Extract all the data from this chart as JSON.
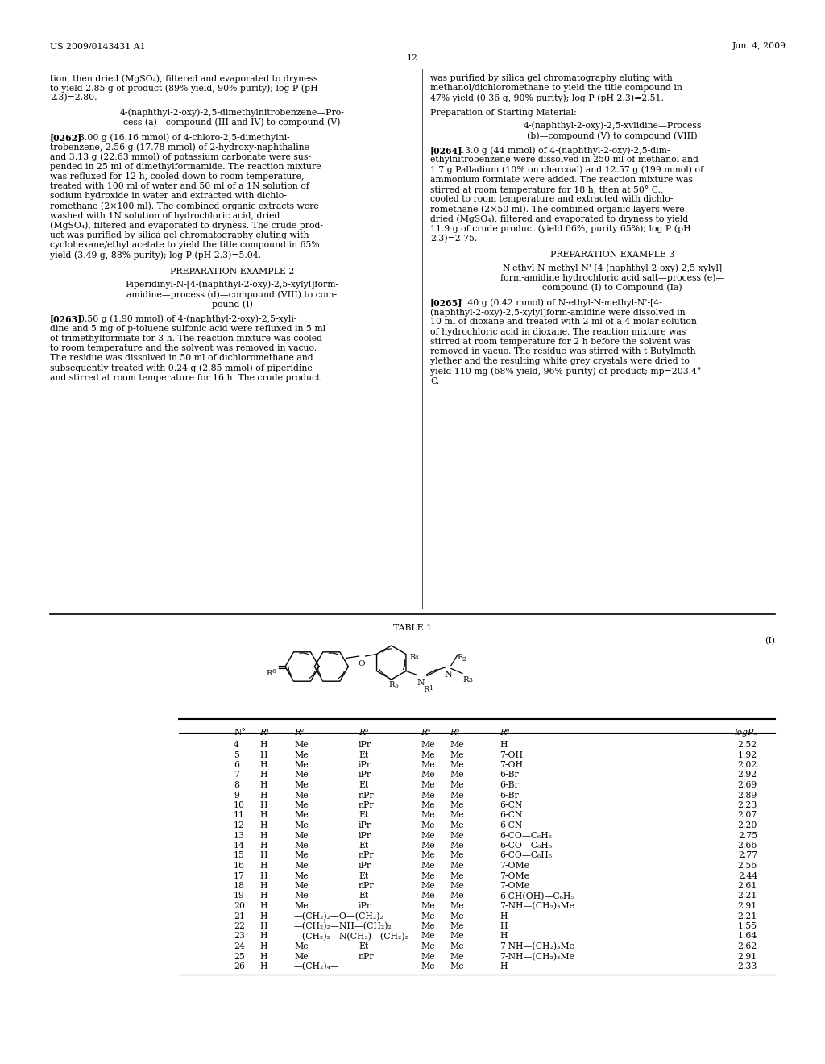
{
  "page_number": "12",
  "patent_number": "US 2009/0143431 A1",
  "patent_date": "Jun. 4, 2009",
  "background_color": "#ffffff",
  "left_column": {
    "intro_text": "tion, then dried (MgSO₄), filtered and evaporated to dryness\nto yield 2.85 g of product (89% yield, 90% purity); log P (pH\n2.3)=2.80.",
    "subtitle1_line1": "4-(naphthyl-2-oxy)-2,5-dimethylnitrobenzene—Pro-",
    "subtitle1_line2": "cess (a)—compound (III and IV) to compound (V)",
    "para1_label": "[0262]",
    "para1_text": "3.00 g (16.16 mmol) of 4-chloro-2,5-dimethylni-\ntrobenzene, 2.56 g (17.78 mmol) of 2-hydroxy-naphthaline\nand 3.13 g (22.63 mmol) of potassium carbonate were sus-\npended in 25 ml of dimethylformamide. The reaction mixture\nwas refluxed for 12 h, cooled down to room temperature,\ntreated with 100 ml of water and 50 ml of a 1N solution of\nsodium hydroxide in water and extracted with dichlo-\nromethane (2×100 ml). The combined organic extracts were\nwashed with 1N solution of hydrochloric acid, dried\n(MgSO₄), filtered and evaporated to dryness. The crude prod-\nuct was purified by silica gel chromatography eluting with\ncyclohexane/ethyl acetate to yield the title compound in 65%\nyield (3.49 g, 88% purity); log P (pH 2.3)=5.04.",
    "heading2": "PREPARATION EXAMPLE 2",
    "subtitle2_line1": "Piperidinyl-N-[4-(naphthyl-2-oxy)-2,5-xylyl]form-",
    "subtitle2_line2": "amidine—process (d)—compound (VIII) to com-",
    "subtitle2_line3": "pound (I)",
    "para2_label": "[0263]",
    "para2_text": "0.50 g (1.90 mmol) of 4-(naphthyl-2-oxy)-2,5-xyli-\ndine and 5 mg of p-toluene sulfonic acid were refluxed in 5 ml\nof trimethylformiate for 3 h. The reaction mixture was cooled\nto room temperature and the solvent was removed in vacuo.\nThe residue was dissolved in 50 ml of dichloromethane and\nsubsequently treated with 0.24 g (2.85 mmol) of piperidine\nand stirred at room temperature for 16 h. The crude product"
  },
  "right_column": {
    "intro_text": "was purified by silica gel chromatography eluting with\nmethanol/dichloromethane to yield the title compound in\n47% yield (0.36 g, 90% purity); log P (pH 2.3)=2.51.",
    "subtitle3": "Preparation of Starting Material:",
    "subtitle4_line1": "4-(naphthyl-2-oxy)-2,5-xvlidine—Process",
    "subtitle4_line2": "(b)—compound (V) to compound (VIII)",
    "para3_label": "[0264]",
    "para3_text": "13.0 g (44 mmol) of 4-(naphthyl-2-oxy)-2,5-dim-\nethylnitrobenzene were dissolved in 250 ml of methanol and\n1.7 g Palladium (10% on charcoal) and 12.57 g (199 mmol) of\nammonium formiate were added. The reaction mixture was\nstirred at room temperature for 18 h, then at 50° C.,\ncooled to room temperature and extracted with dichlo-\nromethane (2×50 ml). The combined organic layers were\ndried (MgSO₄), filtered and evaporated to dryness to yield\n11.9 g of crude product (yield 66%, purity 65%); log P (pH\n2.3)=2.75.",
    "heading3": "PREPARATION EXAMPLE 3",
    "subtitle5_line1": "N-ethyl-N-methyl-N'-[4-(naphthyl-2-oxy)-2,5-xylyl]",
    "subtitle5_line2": "form-amidine hydrochloric acid salt—process (e)—",
    "subtitle5_line3": "compound (I) to Compound (Ia)",
    "para4_label": "[0265]",
    "para4_text": "1.40 g (0.42 mmol) of N-ethyl-N-methyl-N'-[4-\n(naphthyl-2-oxy)-2,5-xylyl]form-amidine were dissolved in\n10 ml of dioxane and treated with 2 ml of a 4 molar solution\nof hydrochloric acid in dioxane. The reaction mixture was\nstirred at room temperature for 2 h before the solvent was\nremoved in vacuo. The residue was stirred with t-Butylmeth-\nylether and the resulting white grey crystals were dried to\nyield 110 mg (68% yield, 96% purity) of product; mp=203.4°\nC."
  },
  "table": {
    "title": "TABLE 1",
    "rows": [
      [
        "4",
        "H",
        "Me",
        "iPr",
        "Me",
        "Me",
        "H",
        "2.52"
      ],
      [
        "5",
        "H",
        "Me",
        "Et",
        "Me",
        "Me",
        "7-OH",
        "1.92"
      ],
      [
        "6",
        "H",
        "Me",
        "iPr",
        "Me",
        "Me",
        "7-OH",
        "2.02"
      ],
      [
        "7",
        "H",
        "Me",
        "iPr",
        "Me",
        "Me",
        "6-Br",
        "2.92"
      ],
      [
        "8",
        "H",
        "Me",
        "Et",
        "Me",
        "Me",
        "6-Br",
        "2.69"
      ],
      [
        "9",
        "H",
        "Me",
        "nPr",
        "Me",
        "Me",
        "6-Br",
        "2.89"
      ],
      [
        "10",
        "H",
        "Me",
        "nPr",
        "Me",
        "Me",
        "6-CN",
        "2.23"
      ],
      [
        "11",
        "H",
        "Me",
        "Et",
        "Me",
        "Me",
        "6-CN",
        "2.07"
      ],
      [
        "12",
        "H",
        "Me",
        "iPr",
        "Me",
        "Me",
        "6-CN",
        "2.20"
      ],
      [
        "13",
        "H",
        "Me",
        "iPr",
        "Me",
        "Me",
        "6-CO—C₆H₅",
        "2.75"
      ],
      [
        "14",
        "H",
        "Me",
        "Et",
        "Me",
        "Me",
        "6-CO—C₆H₅",
        "2.66"
      ],
      [
        "15",
        "H",
        "Me",
        "nPr",
        "Me",
        "Me",
        "6-CO—C₆H₅",
        "2.77"
      ],
      [
        "16",
        "H",
        "Me",
        "iPr",
        "Me",
        "Me",
        "7-OMe",
        "2.56"
      ],
      [
        "17",
        "H",
        "Me",
        "Et",
        "Me",
        "Me",
        "7-OMe",
        "2.44"
      ],
      [
        "18",
        "H",
        "Me",
        "nPr",
        "Me",
        "Me",
        "7-OMe",
        "2.61"
      ],
      [
        "19",
        "H",
        "Me",
        "Et",
        "Me",
        "Me",
        "6-CH(OH)—C₆H₅",
        "2.21"
      ],
      [
        "20",
        "H",
        "Me",
        "iPr",
        "Me",
        "Me",
        "7-NH—(CH₂)₃Me",
        "2.91"
      ],
      [
        "21",
        "H",
        "—(CH₂)₂—O—(CH₂)₂",
        "",
        "Me",
        "Me",
        "H",
        "2.21"
      ],
      [
        "22",
        "H",
        "—(CH₂)₂—NH—(CH₂)₂",
        "",
        "Me",
        "Me",
        "H",
        "1.55"
      ],
      [
        "23",
        "H",
        "—(CH₂)₂—N(CH₃)—(CH₂)₂",
        "",
        "Me",
        "Me",
        "H",
        "1.64"
      ],
      [
        "24",
        "H",
        "Me",
        "Et",
        "Me",
        "Me",
        "7-NH—(CH₂)₃Me",
        "2.62"
      ],
      [
        "25",
        "H",
        "Me",
        "nPr",
        "Me",
        "Me",
        "7-NH—(CH₂)₃Me",
        "2.91"
      ],
      [
        "26",
        "H",
        "—(CH₂)₄—",
        "",
        "Me",
        "Me",
        "H",
        "2.33"
      ]
    ]
  }
}
